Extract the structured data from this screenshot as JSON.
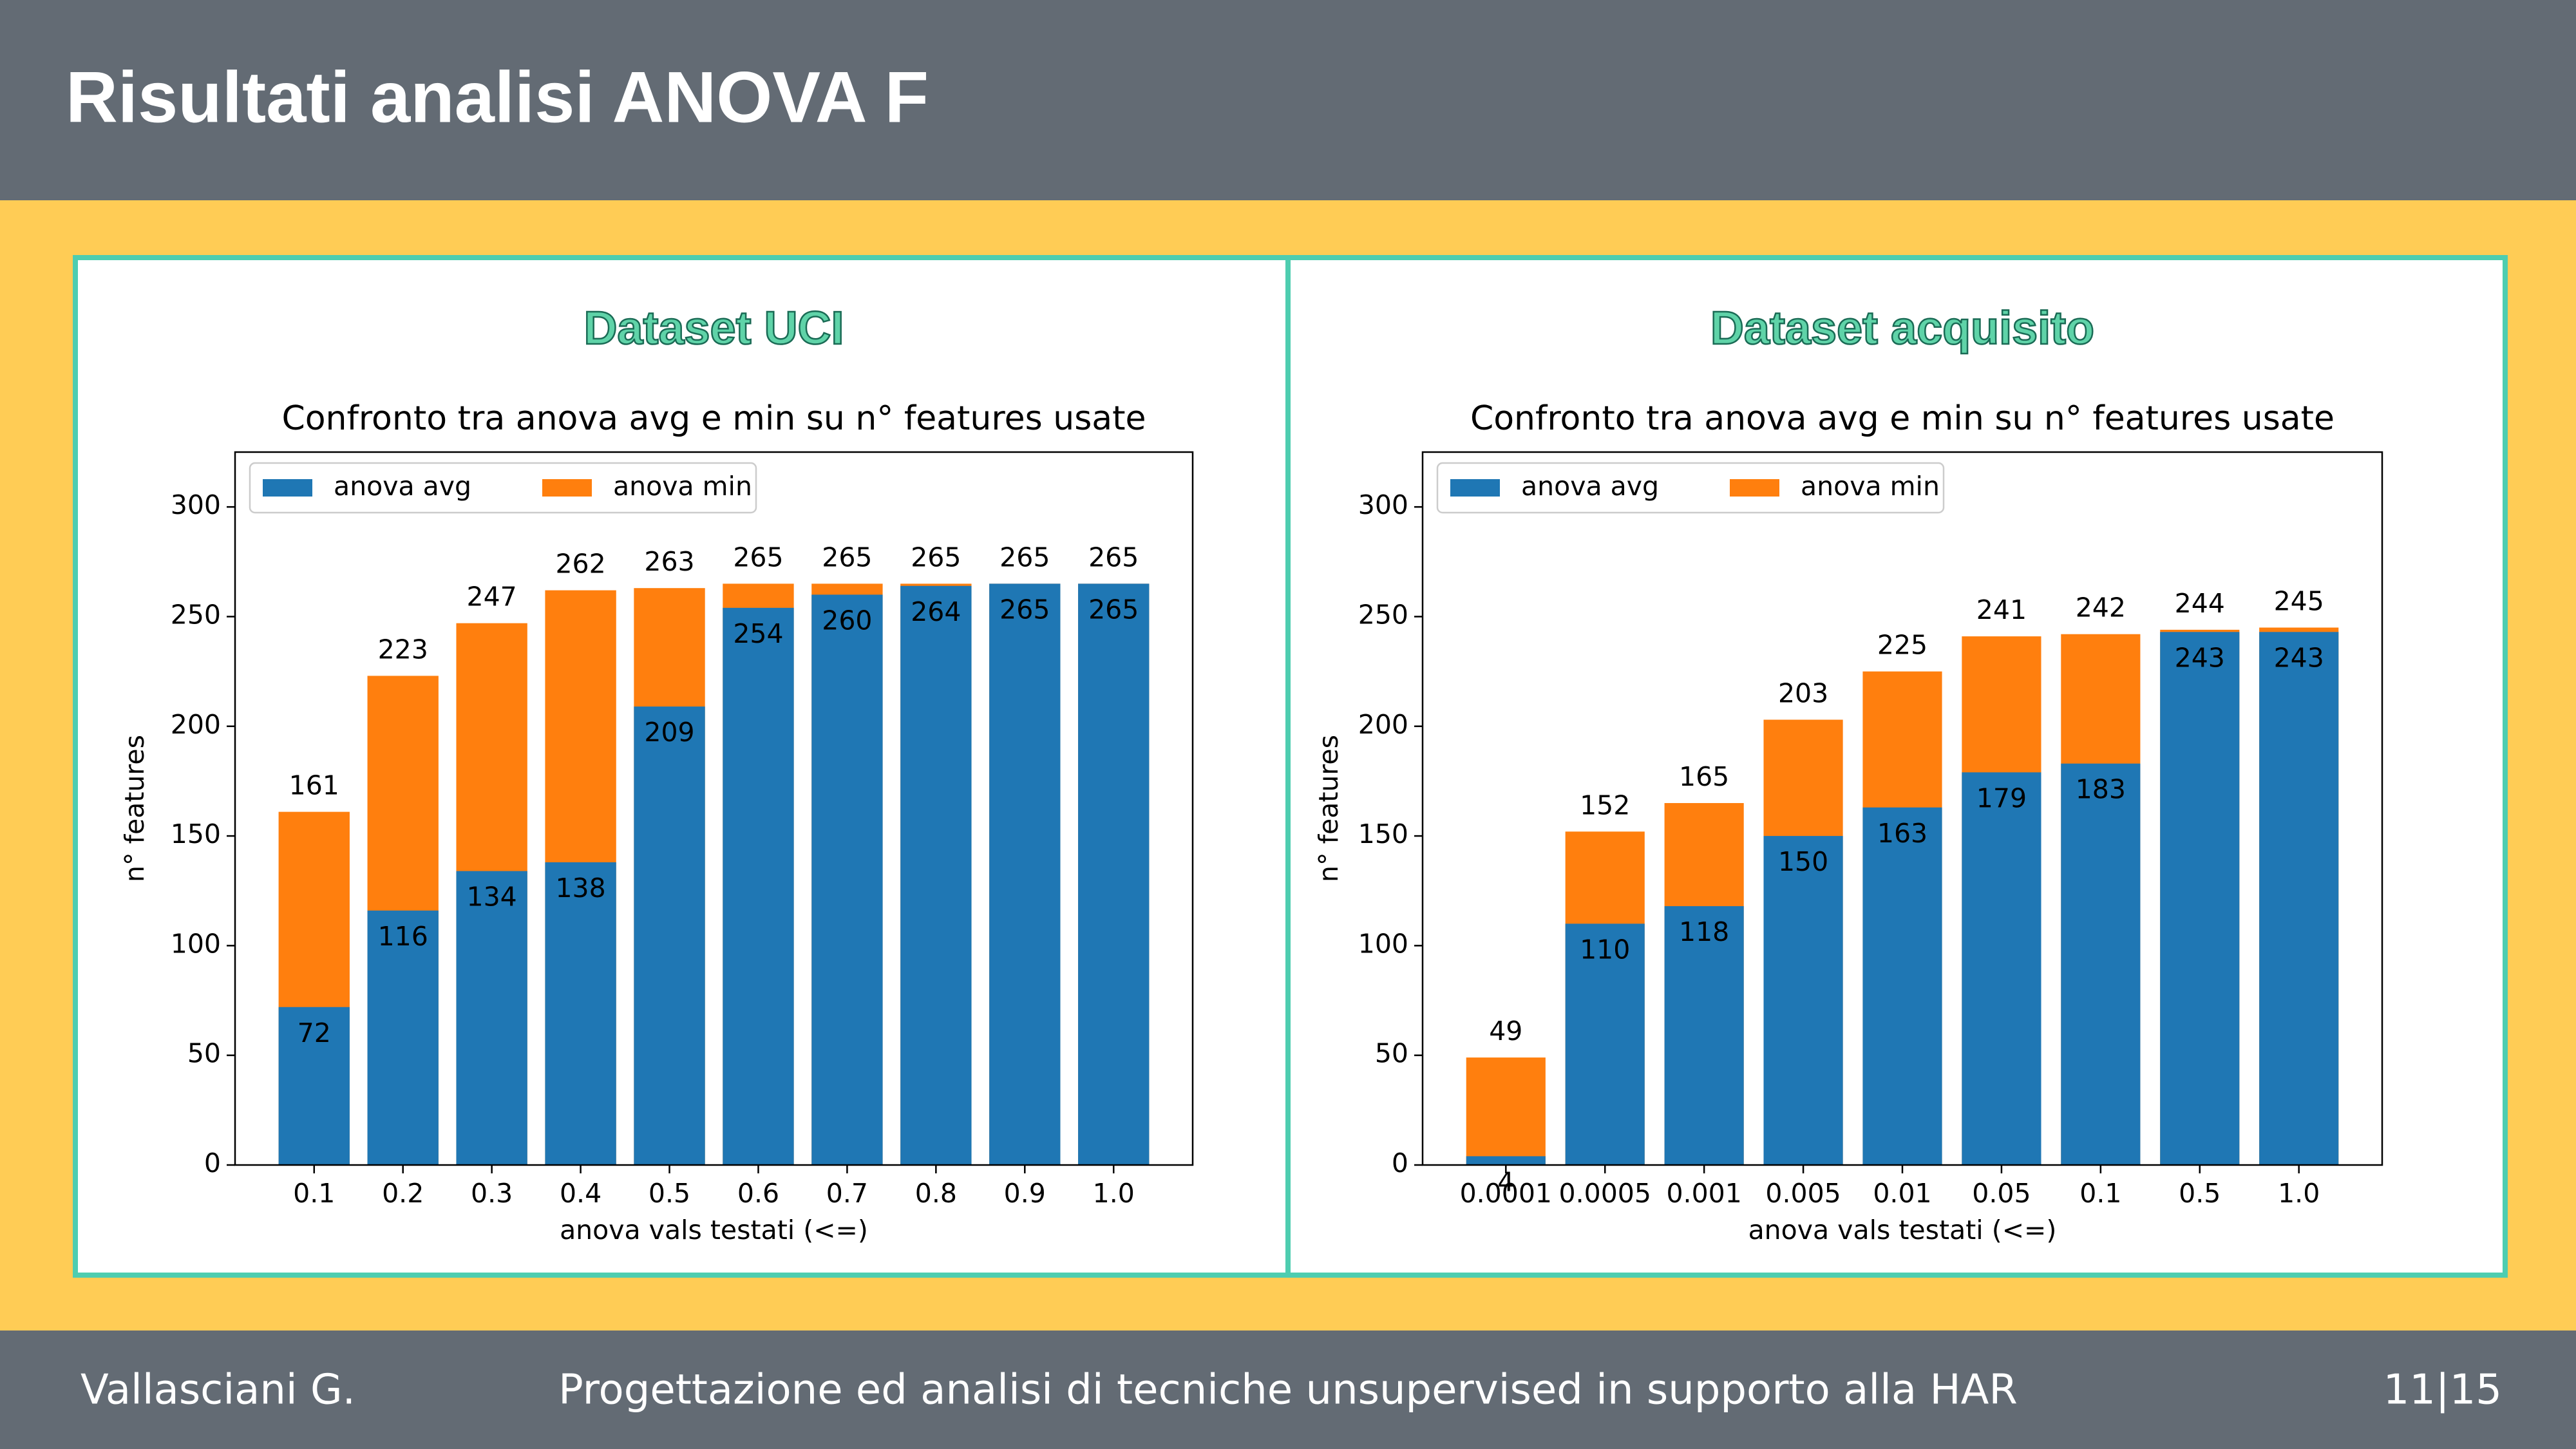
{
  "slide_title": "Risultati analisi ANOVA F",
  "footer": {
    "author": "Vallasciani G.",
    "subject": "Progettazione ed analisi di tecniche unsupervised in supporto alla HAR",
    "page": "11|15"
  },
  "chart_data": [
    {
      "type": "bar",
      "panel_title": "Dataset UCI",
      "title": "Confronto tra anova avg e min su n° features usate",
      "xlabel": "anova vals testati (<=)",
      "ylabel": "n° features",
      "categories": [
        "0.1",
        "0.2",
        "0.3",
        "0.4",
        "0.5",
        "0.6",
        "0.7",
        "0.8",
        "0.9",
        "1.0"
      ],
      "series": [
        {
          "name": "anova avg",
          "color": "#1f77b4",
          "values": [
            72,
            116,
            134,
            138,
            209,
            254,
            260,
            264,
            265,
            265
          ]
        },
        {
          "name": "anova min",
          "color": "#ff7f0e",
          "values": [
            161,
            223,
            247,
            262,
            263,
            265,
            265,
            265,
            265,
            265
          ]
        }
      ],
      "ylim": [
        0,
        325
      ],
      "yticks": [
        0,
        50,
        100,
        150,
        200,
        250,
        300
      ],
      "legend": "upper left"
    },
    {
      "type": "bar",
      "panel_title": "Dataset acquisito",
      "title": "Confronto tra anova avg e min su n° features usate",
      "xlabel": "anova vals testati (<=)",
      "ylabel": "n° features",
      "categories": [
        "0.0001",
        "0.0005",
        "0.001",
        "0.005",
        "0.01",
        "0.05",
        "0.1",
        "0.5",
        "1.0"
      ],
      "series": [
        {
          "name": "anova avg",
          "color": "#1f77b4",
          "values": [
            4,
            110,
            118,
            150,
            163,
            179,
            183,
            243,
            243
          ]
        },
        {
          "name": "anova min",
          "color": "#ff7f0e",
          "values": [
            49,
            152,
            165,
            203,
            225,
            241,
            242,
            244,
            245
          ]
        }
      ],
      "ylim": [
        0,
        325
      ],
      "yticks": [
        0,
        50,
        100,
        150,
        200,
        250,
        300
      ],
      "legend": "upper left"
    }
  ]
}
